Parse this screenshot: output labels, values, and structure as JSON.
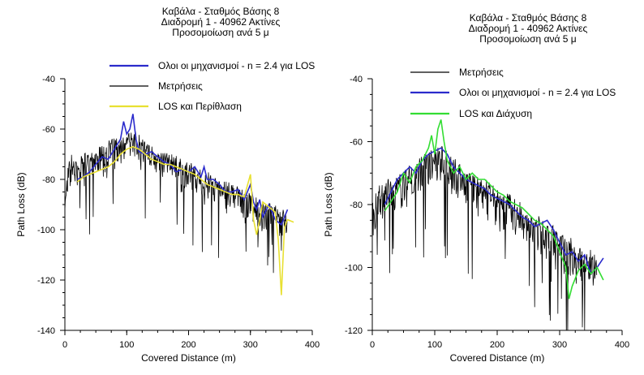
{
  "chart_data": [
    {
      "type": "line",
      "title": [
        "Καβάλα - Σταθμός Βάσης 8",
        "Διαδρομή 1 - 40962 Ακτίνες",
        "Προσομοίωση ανά 5 μ"
      ],
      "xlabel": "Covered Distance (m)",
      "ylabel": "Path Loss (dB)",
      "xlim": [
        0,
        400
      ],
      "ylim": [
        -140,
        -40
      ],
      "xticks": [
        0,
        100,
        200,
        300,
        400
      ],
      "yticks": [
        -140,
        -120,
        -100,
        -80,
        -60,
        -40
      ],
      "grid": false,
      "legend_position": "top",
      "series": [
        {
          "name": "Ολοι οι μηχανισμοί - n = 2.4 για LOS",
          "color": "#2b2bcc",
          "x": [
            20,
            30,
            40,
            50,
            60,
            70,
            80,
            90,
            95,
            100,
            105,
            110,
            115,
            120,
            130,
            140,
            150,
            160,
            170,
            180,
            190,
            200,
            210,
            220,
            225,
            230,
            240,
            250,
            260,
            270,
            280,
            290,
            300,
            305,
            310,
            315,
            320,
            330,
            340,
            350,
            360
          ],
          "y": [
            -80,
            -79,
            -77,
            -74,
            -71,
            -72,
            -68,
            -64,
            -57,
            -62,
            -60,
            -54,
            -64,
            -69,
            -70,
            -69,
            -71,
            -73,
            -74,
            -77,
            -76,
            -77,
            -75,
            -79,
            -75,
            -80,
            -80,
            -82,
            -85,
            -85,
            -84,
            -88,
            -82,
            -89,
            -92,
            -88,
            -95,
            -90,
            -96,
            -98,
            -92
          ]
        },
        {
          "name": "Μετρήσεις",
          "color": "#000000",
          "x": [
            0,
            10,
            20,
            30,
            40,
            50,
            60,
            70,
            80,
            90,
            100,
            110,
            120,
            130,
            140,
            150,
            160,
            170,
            180,
            190,
            200,
            210,
            220,
            230,
            240,
            250,
            260,
            270,
            280,
            290,
            300,
            310,
            320,
            330,
            340,
            350,
            360
          ],
          "y": [
            -82,
            -72,
            -74,
            -72,
            -71,
            -70,
            -69,
            -67,
            -66,
            -65,
            -64,
            -63,
            -64,
            -67,
            -69,
            -71,
            -72,
            -72,
            -73,
            -75,
            -75,
            -76,
            -78,
            -79,
            -81,
            -82,
            -83,
            -84,
            -85,
            -86,
            -88,
            -89,
            -90,
            -91,
            -92,
            -93,
            -95
          ]
        },
        {
          "name": "LOS και Περίθλαση",
          "color": "#e8e032",
          "x": [
            20,
            30,
            40,
            50,
            60,
            70,
            80,
            90,
            100,
            110,
            120,
            130,
            140,
            150,
            160,
            170,
            180,
            190,
            200,
            210,
            220,
            230,
            240,
            250,
            260,
            270,
            280,
            290,
            300,
            305,
            310,
            315,
            320,
            330,
            340,
            345,
            350,
            355,
            360,
            370
          ],
          "y": [
            -81,
            -79,
            -78,
            -77,
            -76,
            -75,
            -73,
            -70,
            -68,
            -67,
            -68,
            -70,
            -72,
            -73,
            -74,
            -74,
            -75,
            -76,
            -77,
            -78,
            -80,
            -82,
            -83,
            -84,
            -85,
            -86,
            -86,
            -87,
            -78,
            -96,
            -102,
            -96,
            -89,
            -91,
            -93,
            -104,
            -126,
            -99,
            -96,
            -97
          ]
        }
      ]
    },
    {
      "type": "line",
      "title": [
        "Καβάλα - Σταθμός Βάσης 8",
        "Διαδρομή 1 - 40962 Ακτίνες",
        "Προσομοίωση ανά 5 μ"
      ],
      "xlabel": "Covered Distance (m)",
      "ylabel": "Path Loss (dB)",
      "xlim": [
        0,
        400
      ],
      "ylim": [
        -120,
        -40
      ],
      "xticks": [
        0,
        100,
        200,
        300,
        400
      ],
      "yticks": [
        -120,
        -100,
        -80,
        -60,
        -40
      ],
      "grid": false,
      "legend_position": "top",
      "series": [
        {
          "name": "Μετρήσεις",
          "color": "#000000",
          "x": [
            0,
            10,
            20,
            30,
            40,
            50,
            60,
            70,
            80,
            90,
            100,
            110,
            120,
            130,
            140,
            150,
            160,
            170,
            180,
            190,
            200,
            210,
            220,
            230,
            240,
            250,
            260,
            270,
            280,
            290,
            300,
            310,
            320,
            330,
            340,
            350,
            360
          ],
          "y": [
            -82,
            -76,
            -75,
            -73,
            -72,
            -71,
            -70,
            -68,
            -66,
            -65,
            -64,
            -63,
            -65,
            -67,
            -69,
            -70,
            -72,
            -73,
            -74,
            -76,
            -77,
            -78,
            -79,
            -81,
            -82,
            -84,
            -85,
            -86,
            -88,
            -89,
            -91,
            -92,
            -93,
            -95,
            -96,
            -97,
            -99
          ]
        },
        {
          "name": "Ολοι οι μηχανισμοί - n = 2.4 για LOS",
          "color": "#2b2bcc",
          "x": [
            20,
            30,
            40,
            50,
            60,
            70,
            80,
            90,
            100,
            110,
            120,
            130,
            140,
            150,
            160,
            170,
            180,
            190,
            200,
            210,
            220,
            230,
            240,
            250,
            260,
            270,
            280,
            290,
            300,
            310,
            320,
            330,
            340,
            350,
            360,
            370
          ],
          "y": [
            -80,
            -76,
            -72,
            -70,
            -68,
            -70,
            -66,
            -64,
            -63,
            -62,
            -64,
            -68,
            -70,
            -72,
            -73,
            -74,
            -75,
            -77,
            -78,
            -79,
            -80,
            -82,
            -84,
            -85,
            -87,
            -86,
            -85,
            -88,
            -92,
            -96,
            -95,
            -98,
            -96,
            -102,
            -100,
            -97
          ]
        },
        {
          "name": "LOS και Διάχυση",
          "color": "#33dd33",
          "x": [
            20,
            30,
            40,
            50,
            60,
            70,
            80,
            90,
            95,
            100,
            105,
            110,
            115,
            120,
            130,
            140,
            150,
            160,
            170,
            180,
            190,
            200,
            210,
            220,
            230,
            240,
            250,
            260,
            270,
            280,
            290,
            300,
            310,
            315,
            320,
            330,
            340,
            350,
            360,
            370
          ],
          "y": [
            -82,
            -79,
            -76,
            -70,
            -73,
            -68,
            -66,
            -62,
            -58,
            -64,
            -56,
            -53,
            -60,
            -66,
            -70,
            -68,
            -72,
            -70,
            -72,
            -72,
            -74,
            -76,
            -77,
            -79,
            -80,
            -81,
            -83,
            -85,
            -86,
            -88,
            -90,
            -95,
            -100,
            -110,
            -106,
            -101,
            -99,
            -102,
            -100,
            -104
          ]
        }
      ]
    }
  ]
}
